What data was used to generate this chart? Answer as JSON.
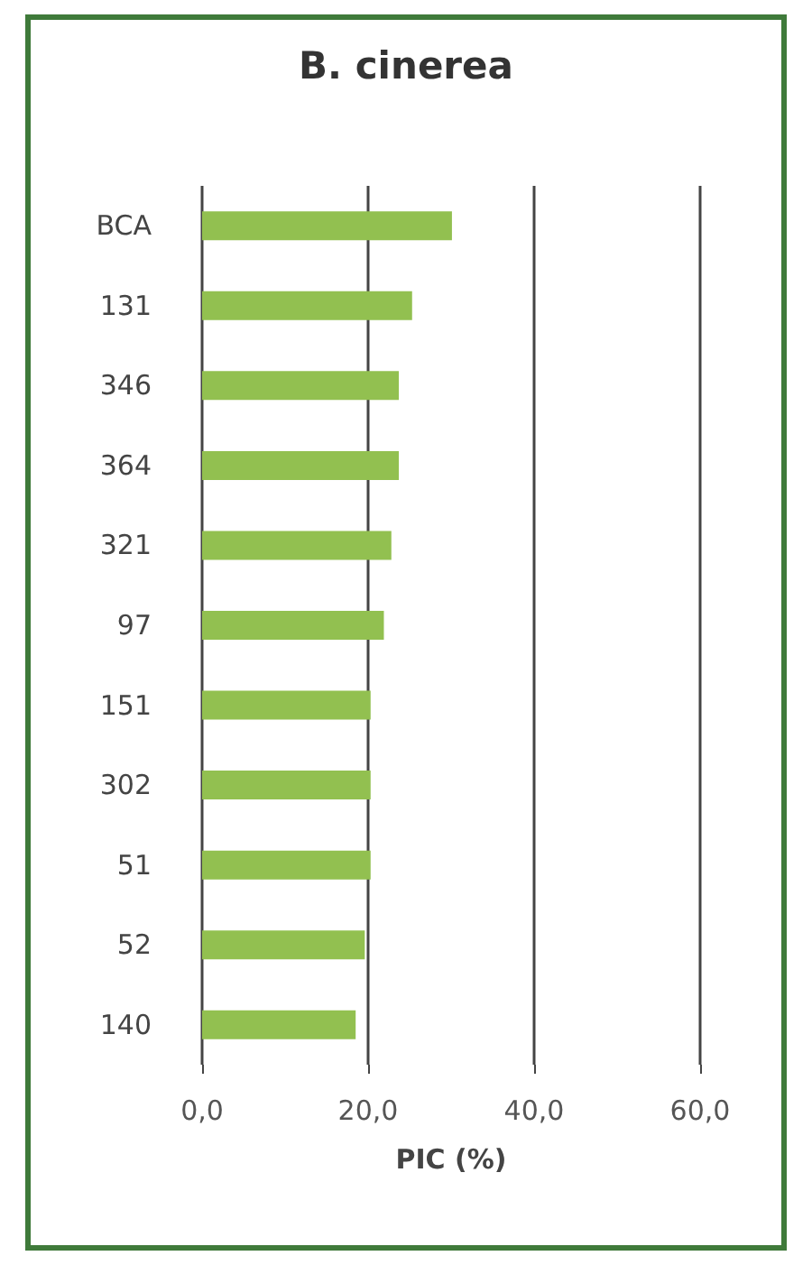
{
  "chart_data": {
    "type": "bar",
    "orientation": "horizontal",
    "title": "B. cinerea",
    "xlabel": "PIC (%)",
    "categories": [
      "BCA",
      "131",
      "346",
      "364",
      "321",
      "97",
      "151",
      "302",
      "51",
      "52",
      "140"
    ],
    "values": [
      30.1,
      25.3,
      23.7,
      23.7,
      22.8,
      21.9,
      20.3,
      20.3,
      20.3,
      19.6,
      18.5
    ],
    "color": "#92c050",
    "xlim": [
      0,
      60
    ],
    "xticks": [
      {
        "value": 0,
        "label": "0,0"
      },
      {
        "value": 20,
        "label": "20,0"
      },
      {
        "value": 40,
        "label": "40,0"
      },
      {
        "value": 60,
        "label": "60,0"
      }
    ],
    "grid": "x"
  }
}
